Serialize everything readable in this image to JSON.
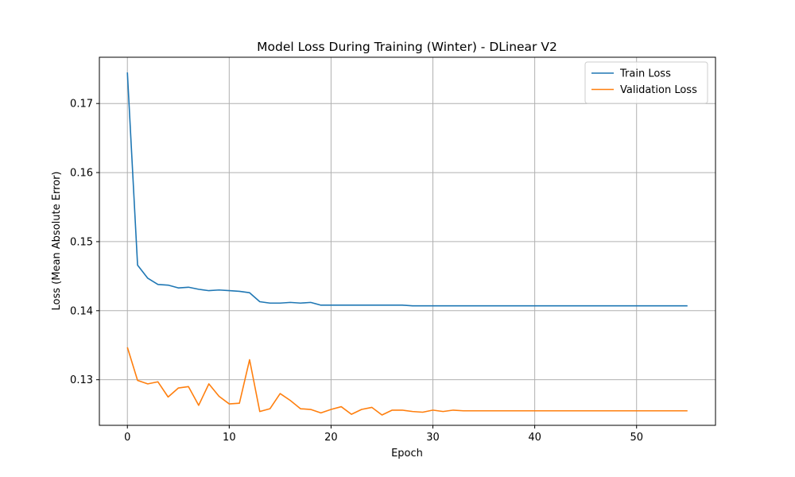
{
  "chart_data": {
    "type": "line",
    "title": "Model Loss During Training (Winter) - DLinear V2",
    "xlabel": "Epoch",
    "ylabel": "Loss (Mean Absolute Error)",
    "xlim": [
      -2.75,
      57.75
    ],
    "ylim": [
      0.1234,
      0.1767
    ],
    "xticks": [
      0,
      10,
      20,
      30,
      40,
      50
    ],
    "yticks": [
      0.13,
      0.14,
      0.15,
      0.16,
      0.17
    ],
    "grid": true,
    "legend_position": "top-right",
    "x": [
      0,
      1,
      2,
      3,
      4,
      5,
      6,
      7,
      8,
      9,
      10,
      11,
      12,
      13,
      14,
      15,
      16,
      17,
      18,
      19,
      20,
      21,
      22,
      23,
      24,
      25,
      26,
      27,
      28,
      29,
      30,
      31,
      32,
      33,
      34,
      35,
      36,
      37,
      38,
      39,
      40,
      41,
      42,
      43,
      44,
      45,
      46,
      47,
      48,
      49,
      50,
      51,
      52,
      53,
      54,
      55
    ],
    "series": [
      {
        "name": "Train Loss",
        "color": "#1f77b4",
        "values": [
          0.1745,
          0.1466,
          0.1447,
          0.1438,
          0.1437,
          0.1433,
          0.1434,
          0.1431,
          0.1429,
          0.143,
          0.1429,
          0.1428,
          0.1426,
          0.1413,
          0.1411,
          0.1411,
          0.1412,
          0.1411,
          0.1412,
          0.1408,
          0.1408,
          0.1408,
          0.1408,
          0.1408,
          0.1408,
          0.1408,
          0.1408,
          0.1408,
          0.1407,
          0.1407,
          0.1407,
          0.1407,
          0.1407,
          0.1407,
          0.1407,
          0.1407,
          0.1407,
          0.1407,
          0.1407,
          0.1407,
          0.1407,
          0.1407,
          0.1407,
          0.1407,
          0.1407,
          0.1407,
          0.1407,
          0.1407,
          0.1407,
          0.1407,
          0.1407,
          0.1407,
          0.1407,
          0.1407,
          0.1407,
          0.1407
        ]
      },
      {
        "name": "Validation Loss",
        "color": "#ff7f0e",
        "values": [
          0.1347,
          0.1299,
          0.1294,
          0.1297,
          0.1275,
          0.1288,
          0.129,
          0.1263,
          0.1294,
          0.1276,
          0.1265,
          0.1266,
          0.1329,
          0.1254,
          0.1258,
          0.128,
          0.127,
          0.1258,
          0.1257,
          0.1252,
          0.1257,
          0.1261,
          0.125,
          0.1257,
          0.126,
          0.1249,
          0.1256,
          0.1256,
          0.1254,
          0.1253,
          0.1256,
          0.1254,
          0.1256,
          0.1255,
          0.1255,
          0.1255,
          0.1255,
          0.1255,
          0.1255,
          0.1255,
          0.1255,
          0.1255,
          0.1255,
          0.1255,
          0.1255,
          0.1255,
          0.1255,
          0.1255,
          0.1255,
          0.1255,
          0.1255,
          0.1255,
          0.1255,
          0.1255,
          0.1255,
          0.1255
        ]
      }
    ]
  }
}
